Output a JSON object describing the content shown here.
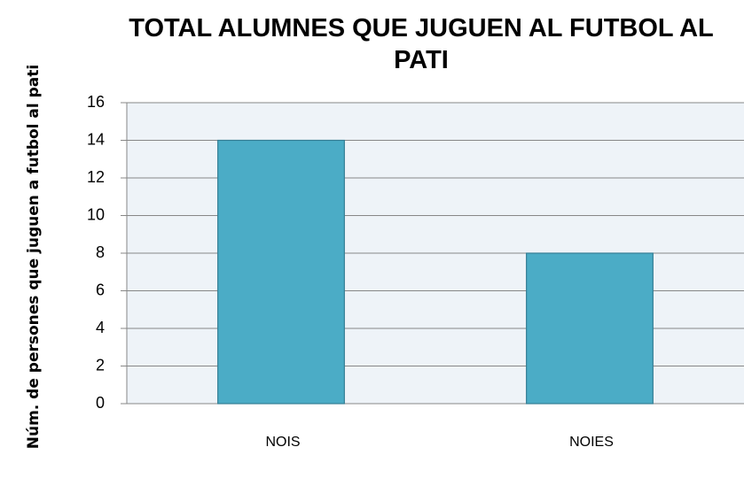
{
  "chart_data": {
    "type": "bar",
    "title": "TOTAL ALUMNES QUE JUGUEN AL FUTBOL AL PATI",
    "y_label": "Núm. de persones que juguen a futbol al pati",
    "categories": [
      "NOIS",
      "NOIES"
    ],
    "values": [
      14,
      8
    ],
    "color": "#4bacc6",
    "ylim": [
      0,
      16
    ],
    "yticks": [
      0,
      2,
      4,
      6,
      8,
      10,
      12,
      14,
      16
    ],
    "grid": true
  }
}
